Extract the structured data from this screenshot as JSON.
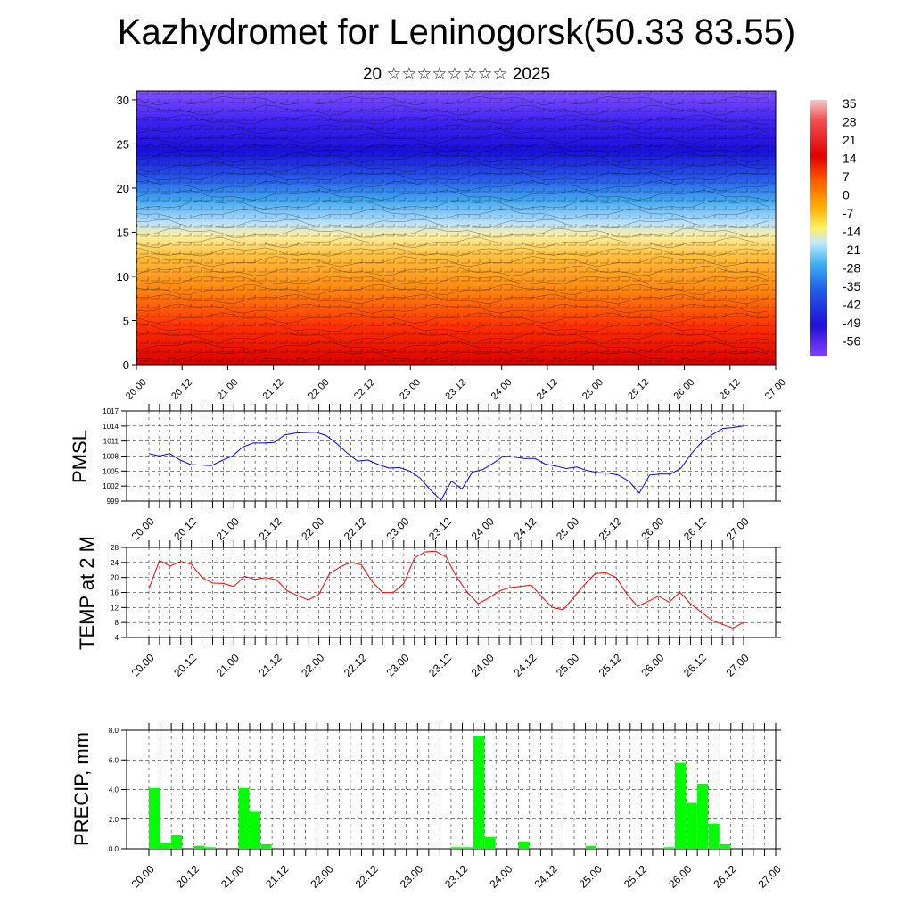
{
  "title": "Kazhydromet for Leninogorsk(50.33 83.55)",
  "subtitle": "20 ☆☆☆☆☆☆☆☆ 2025",
  "palette": {
    "pmsl_line": "#0000ff",
    "temp_line": "#ff0000",
    "precip_bar": "#00ff00",
    "contour_line": "#000000"
  },
  "chart_data": [
    {
      "id": "cross_section",
      "type": "heatmap",
      "title": "",
      "ylabel": "",
      "xlabel": "",
      "ylim": [
        0,
        31
      ],
      "yticks": [
        0,
        5,
        10,
        15,
        20,
        25,
        30
      ],
      "xticks": [
        "20.00",
        "20.12",
        "21.00",
        "21.12",
        "22.00",
        "22.12",
        "23.00",
        "23.12",
        "24.00",
        "24.12",
        "25.00",
        "25.12",
        "26.00",
        "26.12",
        "27.00"
      ],
      "colorbar_labels": [
        "35",
        "28",
        "21",
        "14",
        "7",
        "0",
        "-7",
        "-14",
        "-21",
        "-28",
        "-35",
        "-42",
        "-49",
        "-56"
      ],
      "grid": false
    },
    {
      "id": "pmsl",
      "type": "line",
      "ylabel": "PMSL",
      "ylim": [
        999,
        1017
      ],
      "yticks": [
        "1017",
        "1014",
        "1011",
        "1008",
        "1005",
        "1002",
        "999"
      ],
      "xticks": [
        "20.00",
        "20.12",
        "21.00",
        "21.12",
        "22.00",
        "22.12",
        "23.00",
        "23.12",
        "24.00",
        "24.12",
        "25.00",
        "25.12",
        "26.00",
        "26.12",
        "27.00"
      ],
      "grid": true,
      "series": [
        {
          "values": [
            1008.5,
            1008.0,
            1008.5,
            1007.2,
            1006.3,
            1006.2,
            1006.1,
            1007.1,
            1008.0,
            1009.8,
            1010.6,
            1010.6,
            1010.7,
            1012.2,
            1012.6,
            1012.7,
            1012.8,
            1012.1,
            1010.5,
            1008.6,
            1007.0,
            1007.2,
            1006.3,
            1005.6,
            1005.7,
            1005.0,
            1003.6,
            1001.2,
            999.2,
            1003.0,
            1001.4,
            1004.8,
            1005.3,
            1006.6,
            1008.0,
            1007.8,
            1007.5,
            1007.5,
            1006.4,
            1006.0,
            1005.5,
            1005.8,
            1005.1,
            1004.7,
            1004.6,
            1004.2,
            1003.0,
            1000.6,
            1004.2,
            1004.4,
            1004.4,
            1005.6,
            1008.5,
            1010.8,
            1012.3,
            1013.5,
            1013.7,
            1014.0
          ]
        }
      ]
    },
    {
      "id": "temp",
      "type": "line",
      "ylabel": "TEMP at 2 M",
      "ylim": [
        4,
        28
      ],
      "yticks": [
        "28",
        "24",
        "20",
        "16",
        "12",
        "8",
        "4"
      ],
      "xticks": [
        "20.00",
        "20.12",
        "21.00",
        "21.12",
        "22.00",
        "22.12",
        "23.00",
        "23.12",
        "24.00",
        "24.12",
        "25.00",
        "25.12",
        "26.00",
        "26.12",
        "27.00"
      ],
      "grid": true,
      "series": [
        {
          "values": [
            17.0,
            24.5,
            23.0,
            24.3,
            23.5,
            20.0,
            18.5,
            18.4,
            17.6,
            20.3,
            19.5,
            20.0,
            19.4,
            16.5,
            15.2,
            14.0,
            15.5,
            21.0,
            22.8,
            24.0,
            23.4,
            19.0,
            16.0,
            15.9,
            18.4,
            25.2,
            26.8,
            27.0,
            25.4,
            20.0,
            16.0,
            13.0,
            14.5,
            16.4,
            17.3,
            17.6,
            18.0,
            14.8,
            12.0,
            11.4,
            14.7,
            18.0,
            21.0,
            21.3,
            20.0,
            15.6,
            12.3,
            13.6,
            15.0,
            13.4,
            16.1,
            13.0,
            10.8,
            8.6,
            7.5,
            6.5,
            8.0
          ]
        }
      ]
    },
    {
      "id": "precip",
      "type": "bar",
      "ylabel": "PRECIP, mm",
      "ylim": [
        0,
        8
      ],
      "yticks": [
        "8.0",
        "6.0",
        "4.0",
        "2.0",
        "0.0"
      ],
      "xticks": [
        "20.00",
        "20.12",
        "21.00",
        "21.12",
        "22.00",
        "22.12",
        "23.00",
        "23.12",
        "24.00",
        "24.12",
        "25.00",
        "25.12",
        "26.00",
        "26.12",
        "27.00"
      ],
      "grid": true,
      "bins": [
        "20.03",
        "20.06",
        "20.09",
        "20.12",
        "20.15",
        "20.18",
        "20.21",
        "21.00",
        "21.03",
        "21.06",
        "21.09",
        "21.12",
        "21.15",
        "21.18",
        "21.21",
        "22.00",
        "22.03",
        "22.06",
        "22.09",
        "22.12",
        "22.15",
        "22.18",
        "22.21",
        "23.00",
        "23.03",
        "23.06",
        "23.09",
        "23.12",
        "23.15",
        "23.18",
        "23.21",
        "24.00",
        "24.03",
        "24.06",
        "24.09",
        "24.12",
        "24.15",
        "24.18",
        "24.21",
        "25.00",
        "25.03",
        "25.06",
        "25.09",
        "25.12",
        "25.15",
        "25.18",
        "25.21",
        "26.00",
        "26.03",
        "26.06",
        "26.09",
        "26.12",
        "26.15",
        "26.18",
        "26.21"
      ],
      "values": [
        4.1,
        0.4,
        0.9,
        0.0,
        0.2,
        0.1,
        0.0,
        0.0,
        4.1,
        2.5,
        0.3,
        0.0,
        0.0,
        0.0,
        0.0,
        0.0,
        0.0,
        0.0,
        0.0,
        0.0,
        0.0,
        0.0,
        0.0,
        0.0,
        0.0,
        0.0,
        0.0,
        0.1,
        0.1,
        7.6,
        0.8,
        0.0,
        0.0,
        0.5,
        0.0,
        0.0,
        0.0,
        0.0,
        0.0,
        0.2,
        0.0,
        0.0,
        0.0,
        0.0,
        0.0,
        0.0,
        0.1,
        5.8,
        3.1,
        4.4,
        1.7,
        0.3,
        0.0,
        0.0,
        0.0
      ]
    }
  ]
}
